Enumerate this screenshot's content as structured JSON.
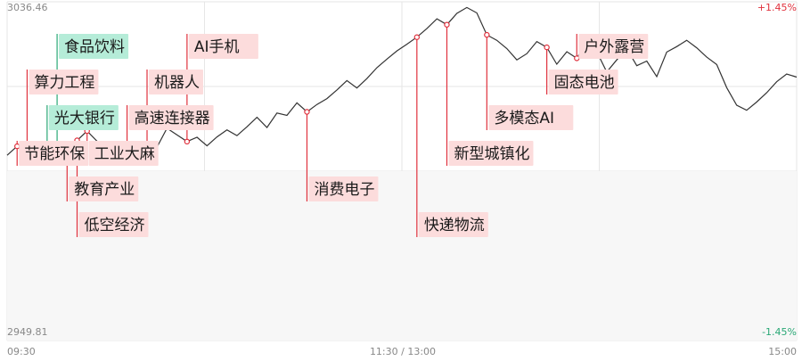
{
  "chart_data": {
    "type": "line",
    "title": "",
    "xlabel": "",
    "ylabel": "",
    "ylim": [
      2949.81,
      3036.46
    ],
    "y_labels": {
      "top": "3036.46",
      "bottom": "2949.81"
    },
    "pct_labels": {
      "top": "+1.45%",
      "bottom": "-1.45%"
    },
    "x_ticks": [
      "09:30",
      "11:30 / 13:00",
      "15:00"
    ],
    "grid": true,
    "colors": {
      "line": "#333333",
      "up": "#e0313d",
      "down": "#2aa876",
      "up_fill": "#fcdcdc",
      "down_fill": "#b5ecd8",
      "lower_area": "#f7f7f7"
    },
    "series": [
      {
        "values": [
          2997.2,
          2999.5,
          2996.8,
          2998.3,
          2996.1,
          2995.4,
          2997.9,
          3001.0,
          3003.4,
          3000.8,
          2999.2,
          2997.6,
          2996.5,
          2995.0,
          2997.2,
          2999.3,
          3004.1,
          3002.4,
          3000.7,
          3001.8,
          2999.6,
          3001.9,
          3003.7,
          3002.2,
          3004.5,
          3006.9,
          3004.3,
          3008.0,
          3007.4,
          3010.6,
          3008.3,
          3010.2,
          3011.7,
          3013.9,
          3016.3,
          3014.4,
          3016.8,
          3019.6,
          3021.8,
          3023.9,
          3025.6,
          3027.4,
          3029.6,
          3032.1,
          3030.6,
          3033.5,
          3035.0,
          3033.6,
          3028.0,
          3026.6,
          3024.5,
          3021.6,
          3023.2,
          3026.3,
          3024.8,
          3020.5,
          3023.7,
          3022.0,
          3026.4,
          3023.7,
          3018.5,
          3021.6,
          3024.5,
          3020.1,
          3021.3,
          3017.3,
          3023.6,
          3025.0,
          3026.6,
          3024.7,
          3022.3,
          3020.4,
          3014.5,
          3010.0,
          3008.7,
          3010.8,
          3013.2,
          3016.0,
          3018.0,
          3017.2
        ]
      }
    ],
    "annotations": [
      {
        "label": "节能环保",
        "index": 1,
        "color": "up"
      },
      {
        "label": "算力工程",
        "index": 2,
        "color": "up"
      },
      {
        "label": "光大银行",
        "index": 4,
        "color": "down"
      },
      {
        "label": "食品饮料",
        "index": 5,
        "color": "down"
      },
      {
        "label": "教育产业",
        "index": 6,
        "color": "up"
      },
      {
        "label": "低空经济",
        "index": 7,
        "color": "up"
      },
      {
        "label": "工业大麻",
        "index": 8,
        "color": "up"
      },
      {
        "label": "高速连接器",
        "index": 12,
        "color": "up"
      },
      {
        "label": "机器人",
        "index": 14,
        "color": "up"
      },
      {
        "label": "AI手机",
        "index": 18,
        "color": "up"
      },
      {
        "label": "消费电子",
        "index": 30,
        "color": "up"
      },
      {
        "label": "快递物流",
        "index": 41,
        "color": "up"
      },
      {
        "label": "新型城镇化",
        "index": 44,
        "color": "up"
      },
      {
        "label": "多模态AI",
        "index": 48,
        "color": "up"
      },
      {
        "label": "固态电池",
        "index": 54,
        "color": "up"
      },
      {
        "label": "户外露营",
        "index": 57,
        "color": "up"
      }
    ]
  }
}
